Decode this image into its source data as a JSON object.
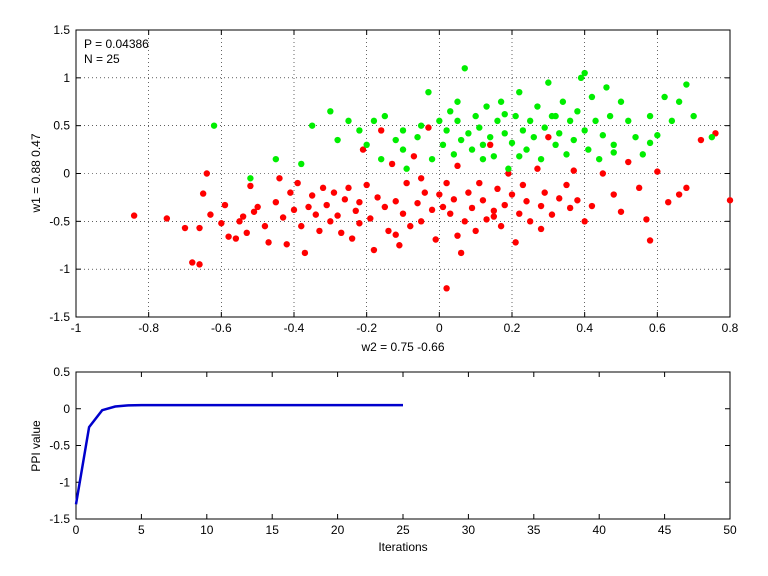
{
  "chart_data": [
    {
      "type": "scatter",
      "title": "",
      "xlabel": "w2 = 0.75  -0.66",
      "ylabel": "w1 = 0.88  0.47",
      "xlim": [
        -1,
        0.8
      ],
      "ylim": [
        -1.5,
        1.5
      ],
      "xticks": [
        -1,
        -0.8,
        -0.6,
        -0.4,
        -0.2,
        0,
        0.2,
        0.4,
        0.6,
        0.8
      ],
      "xtick_labels": [
        "-1",
        "-0.8",
        "-0.6",
        "-0.4",
        "-0.2",
        "0",
        "0.2",
        "0.4",
        "0.6",
        "0.8"
      ],
      "yticks": [
        -1.5,
        -1,
        -0.5,
        0,
        0.5,
        1,
        1.5
      ],
      "ytick_labels": [
        "-1.5",
        "-1",
        "-0.5",
        "0",
        "0.5",
        "1",
        "1.5"
      ],
      "grid": true,
      "annotations": [
        "P = 0.04386",
        "N = 25"
      ],
      "colors": {
        "red_series": "#ff0000",
        "green_series": "#00ee00"
      },
      "series": [
        {
          "color": "red",
          "points": [
            [
              -0.84,
              -0.44
            ],
            [
              -0.75,
              -0.47
            ],
            [
              -0.7,
              -0.57
            ],
            [
              -0.68,
              -0.93
            ],
            [
              -0.66,
              -0.95
            ],
            [
              -0.66,
              -0.57
            ],
            [
              -0.65,
              -0.21
            ],
            [
              -0.64,
              0.0
            ],
            [
              -0.63,
              -0.43
            ],
            [
              -0.6,
              -0.52
            ],
            [
              -0.59,
              -0.33
            ],
            [
              -0.58,
              -0.66
            ],
            [
              -0.56,
              -0.68
            ],
            [
              -0.55,
              -0.5
            ],
            [
              -0.54,
              -0.45
            ],
            [
              -0.53,
              -0.62
            ],
            [
              -0.52,
              -0.13
            ],
            [
              -0.51,
              -0.4
            ],
            [
              -0.5,
              -0.35
            ],
            [
              -0.48,
              -0.55
            ],
            [
              -0.47,
              -0.72
            ],
            [
              -0.45,
              -0.3
            ],
            [
              -0.44,
              -0.05
            ],
            [
              -0.43,
              -0.46
            ],
            [
              -0.42,
              -0.74
            ],
            [
              -0.41,
              -0.2
            ],
            [
              -0.4,
              -0.38
            ],
            [
              -0.39,
              -0.1
            ],
            [
              -0.38,
              -0.55
            ],
            [
              -0.37,
              -0.83
            ],
            [
              -0.36,
              -0.35
            ],
            [
              -0.35,
              -0.23
            ],
            [
              -0.34,
              -0.43
            ],
            [
              -0.33,
              -0.6
            ],
            [
              -0.32,
              -0.15
            ],
            [
              -0.31,
              -0.33
            ],
            [
              -0.3,
              -0.5
            ],
            [
              -0.29,
              -0.2
            ],
            [
              -0.28,
              -0.44
            ],
            [
              -0.27,
              -0.62
            ],
            [
              -0.26,
              -0.27
            ],
            [
              -0.25,
              -0.15
            ],
            [
              -0.24,
              -0.68
            ],
            [
              -0.23,
              -0.39
            ],
            [
              -0.22,
              -0.52
            ],
            [
              -0.21,
              0.25
            ],
            [
              -0.2,
              -0.12
            ],
            [
              -0.19,
              -0.47
            ],
            [
              -0.18,
              -0.8
            ],
            [
              -0.17,
              -0.25
            ],
            [
              -0.16,
              0.45
            ],
            [
              -0.15,
              -0.35
            ],
            [
              -0.14,
              -0.6
            ],
            [
              -0.13,
              0.1
            ],
            [
              -0.12,
              -0.29
            ],
            [
              -0.11,
              -0.75
            ],
            [
              -0.1,
              -0.42
            ],
            [
              -0.09,
              -0.1
            ],
            [
              -0.08,
              -0.55
            ],
            [
              -0.07,
              0.18
            ],
            [
              -0.06,
              -0.31
            ],
            [
              -0.05,
              -0.5
            ],
            [
              -0.04,
              -0.2
            ],
            [
              -0.03,
              0.48
            ],
            [
              -0.02,
              -0.38
            ],
            [
              -0.01,
              -0.69
            ],
            [
              0.0,
              -0.22
            ],
            [
              0.01,
              -0.35
            ],
            [
              0.02,
              -0.1
            ],
            [
              0.02,
              -1.2
            ],
            [
              0.03,
              -0.42
            ],
            [
              0.04,
              -0.27
            ],
            [
              0.05,
              0.08
            ],
            [
              0.06,
              -0.83
            ],
            [
              0.07,
              -0.5
            ],
            [
              0.08,
              -0.2
            ],
            [
              0.09,
              -0.36
            ],
            [
              0.1,
              -0.6
            ],
            [
              0.11,
              -0.1
            ],
            [
              0.12,
              -0.28
            ],
            [
              0.13,
              -0.48
            ],
            [
              0.14,
              0.3
            ],
            [
              0.15,
              -0.39
            ],
            [
              0.16,
              -0.16
            ],
            [
              0.17,
              -0.55
            ],
            [
              0.18,
              -0.33
            ],
            [
              0.19,
              0.0
            ],
            [
              0.2,
              -0.22
            ],
            [
              0.21,
              -0.72
            ],
            [
              0.22,
              -0.42
            ],
            [
              0.23,
              -0.12
            ],
            [
              0.24,
              -0.29
            ],
            [
              0.25,
              -0.5
            ],
            [
              0.27,
              0.05
            ],
            [
              0.28,
              -0.34
            ],
            [
              0.29,
              -0.2
            ],
            [
              0.3,
              0.38
            ],
            [
              0.31,
              -0.43
            ],
            [
              0.33,
              -0.26
            ],
            [
              0.35,
              -0.12
            ],
            [
              0.37,
              0.03
            ],
            [
              0.38,
              -0.28
            ],
            [
              0.4,
              -0.5
            ],
            [
              0.42,
              -0.34
            ],
            [
              0.45,
              0.0
            ],
            [
              0.48,
              -0.22
            ],
            [
              0.5,
              -0.4
            ],
            [
              0.52,
              0.12
            ],
            [
              0.55,
              -0.15
            ],
            [
              0.57,
              -0.48
            ],
            [
              0.58,
              -0.7
            ],
            [
              0.6,
              0.02
            ],
            [
              0.63,
              -0.3
            ],
            [
              0.66,
              -0.22
            ],
            [
              0.68,
              -0.15
            ],
            [
              0.72,
              0.35
            ],
            [
              0.76,
              0.42
            ],
            [
              0.8,
              -0.28
            ],
            [
              -0.12,
              -0.64
            ],
            [
              -0.22,
              -0.3
            ],
            [
              0.05,
              -0.65
            ],
            [
              0.15,
              -0.45
            ],
            [
              -0.05,
              -0.05
            ],
            [
              0.28,
              -0.58
            ],
            [
              0.36,
              -0.36
            ]
          ]
        },
        {
          "color": "green",
          "points": [
            [
              -0.62,
              0.5
            ],
            [
              -0.52,
              -0.05
            ],
            [
              -0.45,
              0.15
            ],
            [
              -0.38,
              0.1
            ],
            [
              -0.35,
              0.5
            ],
            [
              -0.3,
              0.65
            ],
            [
              -0.28,
              0.35
            ],
            [
              -0.25,
              0.55
            ],
            [
              -0.22,
              0.45
            ],
            [
              -0.2,
              0.3
            ],
            [
              -0.18,
              0.55
            ],
            [
              -0.16,
              0.15
            ],
            [
              -0.15,
              0.6
            ],
            [
              -0.12,
              0.35
            ],
            [
              -0.1,
              0.25
            ],
            [
              -0.09,
              0.05
            ],
            [
              -0.06,
              0.38
            ],
            [
              -0.05,
              0.5
            ],
            [
              -0.03,
              0.85
            ],
            [
              -0.02,
              0.15
            ],
            [
              0.0,
              0.55
            ],
            [
              0.01,
              0.3
            ],
            [
              0.02,
              0.45
            ],
            [
              0.03,
              0.65
            ],
            [
              0.04,
              0.2
            ],
            [
              0.05,
              0.55
            ],
            [
              0.06,
              0.35
            ],
            [
              0.07,
              1.1
            ],
            [
              0.08,
              0.42
            ],
            [
              0.09,
              0.25
            ],
            [
              0.1,
              0.6
            ],
            [
              0.11,
              0.48
            ],
            [
              0.12,
              0.3
            ],
            [
              0.13,
              0.7
            ],
            [
              0.14,
              0.38
            ],
            [
              0.15,
              0.18
            ],
            [
              0.16,
              0.55
            ],
            [
              0.17,
              0.75
            ],
            [
              0.18,
              0.42
            ],
            [
              0.19,
              0.05
            ],
            [
              0.2,
              0.32
            ],
            [
              0.21,
              0.6
            ],
            [
              0.22,
              0.85
            ],
            [
              0.23,
              0.45
            ],
            [
              0.24,
              0.25
            ],
            [
              0.25,
              0.55
            ],
            [
              0.26,
              0.38
            ],
            [
              0.27,
              0.7
            ],
            [
              0.28,
              0.15
            ],
            [
              0.29,
              0.48
            ],
            [
              0.3,
              0.95
            ],
            [
              0.31,
              0.6
            ],
            [
              0.32,
              0.3
            ],
            [
              0.33,
              0.42
            ],
            [
              0.34,
              0.75
            ],
            [
              0.35,
              0.2
            ],
            [
              0.36,
              0.55
            ],
            [
              0.37,
              0.35
            ],
            [
              0.38,
              0.65
            ],
            [
              0.39,
              1.0
            ],
            [
              0.4,
              0.45
            ],
            [
              0.41,
              0.25
            ],
            [
              0.42,
              0.8
            ],
            [
              0.43,
              0.55
            ],
            [
              0.44,
              0.15
            ],
            [
              0.45,
              0.4
            ],
            [
              0.46,
              0.9
            ],
            [
              0.47,
              0.6
            ],
            [
              0.48,
              0.3
            ],
            [
              0.5,
              0.75
            ],
            [
              0.52,
              0.55
            ],
            [
              0.54,
              0.38
            ],
            [
              0.56,
              0.2
            ],
            [
              0.58,
              0.6
            ],
            [
              0.6,
              0.4
            ],
            [
              0.62,
              0.8
            ],
            [
              0.64,
              0.55
            ],
            [
              0.66,
              0.75
            ],
            [
              0.68,
              0.93
            ],
            [
              0.7,
              0.6
            ],
            [
              0.75,
              0.38
            ],
            [
              0.4,
              1.05
            ],
            [
              0.22,
              0.18
            ],
            [
              0.05,
              0.75
            ],
            [
              -0.1,
              0.45
            ],
            [
              0.12,
              0.15
            ],
            [
              0.32,
              0.6
            ],
            [
              0.48,
              0.22
            ],
            [
              0.58,
              0.32
            ],
            [
              0.18,
              0.62
            ]
          ]
        }
      ]
    },
    {
      "type": "line",
      "title": "",
      "xlabel": "Iterations",
      "ylabel": "PPI value",
      "xlim": [
        0,
        50
      ],
      "ylim": [
        -1.5,
        0.5
      ],
      "xticks": [
        0,
        5,
        10,
        15,
        20,
        25,
        30,
        35,
        40,
        45,
        50
      ],
      "xtick_labels": [
        "0",
        "5",
        "10",
        "15",
        "20",
        "25",
        "30",
        "35",
        "40",
        "45",
        "50"
      ],
      "yticks": [
        -1.5,
        -1,
        -0.5,
        0,
        0.5
      ],
      "ytick_labels": [
        "-1.5",
        "-1",
        "-0.5",
        "0",
        "0.5"
      ],
      "grid": false,
      "colors": {
        "line": "#0000cc"
      },
      "series": [
        {
          "x": [
            0,
            1,
            2,
            3,
            4,
            5,
            6,
            7,
            8,
            9,
            10,
            11,
            12,
            13,
            14,
            15,
            16,
            17,
            18,
            19,
            20,
            21,
            22,
            23,
            24,
            25
          ],
          "values": [
            -1.3,
            -0.25,
            -0.02,
            0.03,
            0.045,
            0.05,
            0.05,
            0.05,
            0.05,
            0.05,
            0.05,
            0.05,
            0.05,
            0.05,
            0.05,
            0.05,
            0.05,
            0.05,
            0.05,
            0.05,
            0.05,
            0.05,
            0.05,
            0.05,
            0.05,
            0.05
          ]
        }
      ]
    }
  ]
}
